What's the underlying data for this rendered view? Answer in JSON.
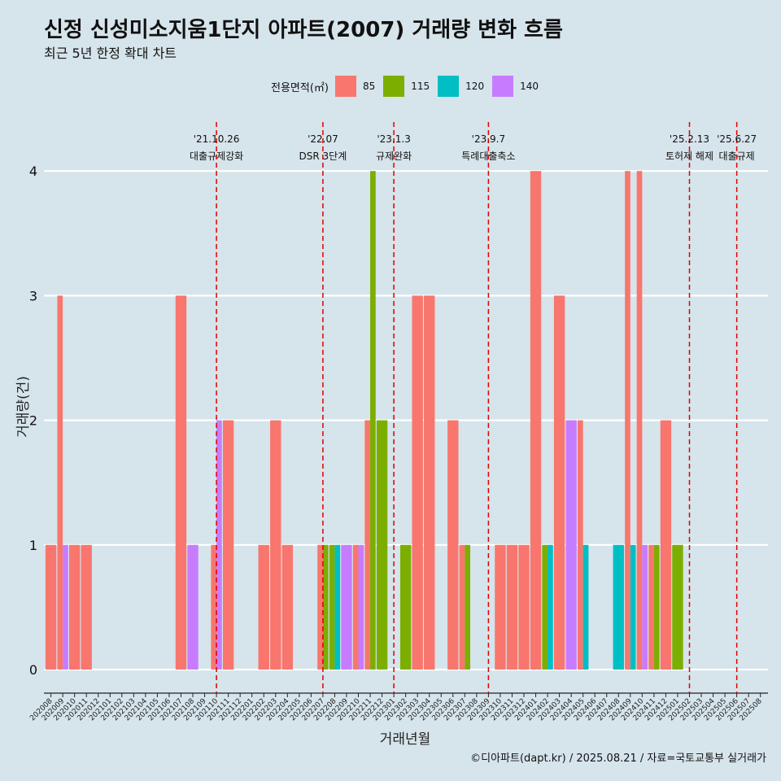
{
  "title": "신정 신성미소지움1단지 아파트(2007) 거래량 변화 흐름",
  "subtitle": "최근 5년 한정 확대 차트",
  "caption": "©디아파트(dapt.kr) / 2025.08.21 / 자료=국토교통부 실거래가",
  "legend": {
    "title": "전용면적(㎡)",
    "items": [
      {
        "label": "85",
        "color": "#f8766d"
      },
      {
        "label": "115",
        "color": "#7cae00"
      },
      {
        "label": "120",
        "color": "#00bfc4"
      },
      {
        "label": "140",
        "color": "#c77cff"
      }
    ]
  },
  "chart_data": {
    "type": "bar",
    "xlabel": "거래년월",
    "ylabel": "거래량(건)",
    "ylim": [
      0,
      4
    ],
    "yticks": [
      0,
      1,
      2,
      3,
      4
    ],
    "categories": [
      "202008",
      "202009",
      "202010",
      "202011",
      "202012",
      "202101",
      "202102",
      "202103",
      "202104",
      "202105",
      "202106",
      "202107",
      "202108",
      "202109",
      "202110",
      "202111",
      "202112",
      "202201",
      "202202",
      "202203",
      "202204",
      "202205",
      "202206",
      "202207",
      "202208",
      "202209",
      "202210",
      "202211",
      "202212",
      "202301",
      "202302",
      "202303",
      "202304",
      "202305",
      "202306",
      "202307",
      "202308",
      "202309",
      "202310",
      "202311",
      "202312",
      "202401",
      "202402",
      "202403",
      "202404",
      "202405",
      "202406",
      "202407",
      "202408",
      "202409",
      "202410",
      "202411",
      "202412",
      "202501",
      "202502",
      "202503",
      "202504",
      "202505",
      "202506",
      "202507",
      "202508"
    ],
    "series": [
      {
        "name": "85",
        "color": "#f8766d",
        "values": [
          1,
          3,
          1,
          1,
          0,
          0,
          0,
          0,
          0,
          0,
          0,
          3,
          0,
          0,
          1,
          2,
          0,
          0,
          1,
          2,
          1,
          0,
          0,
          1,
          0,
          0,
          1,
          2,
          0,
          0,
          0,
          3,
          3,
          0,
          2,
          1,
          0,
          0,
          1,
          1,
          1,
          4,
          0,
          3,
          0,
          2,
          0,
          0,
          0,
          4,
          4,
          1,
          2,
          0,
          0,
          0,
          0,
          0,
          0,
          0,
          0
        ]
      },
      {
        "name": "115",
        "color": "#7cae00",
        "values": [
          0,
          0,
          0,
          0,
          0,
          0,
          0,
          0,
          0,
          0,
          0,
          0,
          0,
          0,
          0,
          0,
          0,
          0,
          0,
          0,
          0,
          0,
          0,
          1,
          1,
          0,
          0,
          4,
          2,
          0,
          1,
          0,
          0,
          0,
          0,
          1,
          0,
          0,
          0,
          0,
          0,
          0,
          1,
          0,
          0,
          0,
          0,
          0,
          0,
          0,
          0,
          1,
          0,
          1,
          0,
          0,
          0,
          0,
          0,
          0,
          0
        ]
      },
      {
        "name": "120",
        "color": "#00bfc4",
        "values": [
          0,
          0,
          0,
          0,
          0,
          0,
          0,
          0,
          0,
          0,
          0,
          0,
          0,
          0,
          0,
          0,
          0,
          0,
          0,
          0,
          0,
          0,
          0,
          0,
          1,
          0,
          0,
          0,
          0,
          0,
          0,
          0,
          0,
          0,
          0,
          0,
          0,
          0,
          0,
          0,
          0,
          0,
          1,
          0,
          0,
          1,
          0,
          0,
          1,
          1,
          0,
          0,
          0,
          0,
          0,
          0,
          0,
          0,
          0,
          0,
          0
        ]
      },
      {
        "name": "140",
        "color": "#c77cff",
        "values": [
          0,
          1,
          0,
          0,
          0,
          0,
          0,
          0,
          0,
          0,
          0,
          0,
          1,
          0,
          2,
          0,
          0,
          0,
          0,
          0,
          0,
          0,
          0,
          0,
          0,
          1,
          1,
          0,
          0,
          0,
          0,
          0,
          0,
          0,
          0,
          0,
          0,
          0,
          0,
          0,
          0,
          0,
          0,
          0,
          2,
          0,
          0,
          0,
          0,
          0,
          1,
          0,
          0,
          0,
          0,
          0,
          0,
          0,
          0,
          0,
          0
        ]
      }
    ],
    "annotations": [
      {
        "date": "202110",
        "line1": "'21.10.26",
        "line2": "대출규제강화"
      },
      {
        "date": "202207",
        "line1": "'22.07",
        "line2": "DSR 3단계"
      },
      {
        "date": "202301",
        "line1": "'23.1.3",
        "line2": "규제완화"
      },
      {
        "date": "202309",
        "line1": "'23.9.7",
        "line2": "특례대출축소"
      },
      {
        "date": "202502",
        "line1": "'25.2.13",
        "line2": "토허제 해제"
      },
      {
        "date": "202506",
        "line1": "'25.6.27",
        "line2": "대출규제"
      }
    ]
  }
}
